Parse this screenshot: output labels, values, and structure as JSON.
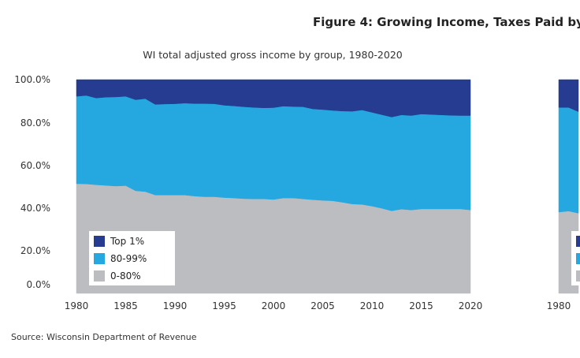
{
  "figure_title": "Figure 4: Growing Income, Taxes Paid by",
  "source": "Source: Wisconsin Department of Revenue",
  "chart_data": [
    {
      "type": "area",
      "stacked": true,
      "title": "WI total adjusted gross income by group, 1980-2020",
      "xlabel": "",
      "ylabel": "",
      "xlim": [
        1980,
        2020
      ],
      "ylim": [
        0,
        100
      ],
      "x_ticks": [
        "1980",
        "1985",
        "1990",
        "1995",
        "2000",
        "2005",
        "2010",
        "2015",
        "2020"
      ],
      "y_ticks": [
        "0.0%",
        "20.0%",
        "40.0%",
        "60.0%",
        "80.0%",
        "100.0%"
      ],
      "grid": false,
      "legend": "bottom-left",
      "x": [
        1980,
        1981,
        1982,
        1983,
        1984,
        1985,
        1986,
        1987,
        1988,
        1989,
        1990,
        1991,
        1992,
        1993,
        1994,
        1995,
        1996,
        1997,
        1998,
        1999,
        2000,
        2001,
        2002,
        2003,
        2004,
        2005,
        2006,
        2007,
        2008,
        2009,
        2010,
        2011,
        2012,
        2013,
        2014,
        2015,
        2016,
        2017,
        2018,
        2019,
        2020
      ],
      "series": [
        {
          "name": "0-80%",
          "color": "#bcbdc0",
          "values": [
            51.3,
            51.2,
            50.8,
            50.5,
            50.2,
            50.4,
            48,
            47.6,
            46,
            46,
            46,
            46,
            45.5,
            45.2,
            45.2,
            44.8,
            44.6,
            44.3,
            44.2,
            44.2,
            43.9,
            44.6,
            44.6,
            44.2,
            43.8,
            43.5,
            43.3,
            42.6,
            41.8,
            41.6,
            40.8,
            39.8,
            38.6,
            39.4,
            39,
            39.5,
            39.5,
            39.5,
            39.5,
            39.5,
            39
          ]
        },
        {
          "name": "80-99%",
          "color": "#25a8e0",
          "values": [
            40.9,
            41.4,
            40.6,
            41.3,
            41.7,
            41.8,
            42.6,
            43.5,
            42.4,
            42.6,
            42.7,
            43,
            43.3,
            43.6,
            43.5,
            43.2,
            43.1,
            43,
            42.8,
            42.6,
            43,
            43,
            42.8,
            43.1,
            42.5,
            42.5,
            42.3,
            42.7,
            43.4,
            44.2,
            43.9,
            43.8,
            43.9,
            44.1,
            44.2,
            44.4,
            44.2,
            44,
            43.8,
            43.7,
            44.2
          ]
        },
        {
          "name": "Top 1%",
          "color": "#253c90",
          "values": [
            7.8,
            7.4,
            8.6,
            8.2,
            8.1,
            7.8,
            9.4,
            8.9,
            11.6,
            11.4,
            11.3,
            11,
            11.2,
            11.2,
            11.3,
            12,
            12.3,
            12.7,
            13,
            13.2,
            13.1,
            12.4,
            12.6,
            12.7,
            13.7,
            14,
            14.4,
            14.7,
            14.8,
            14.2,
            15.3,
            16.4,
            17.5,
            16.5,
            16.8,
            16.1,
            16.3,
            16.5,
            16.7,
            16.8,
            16.8
          ]
        }
      ]
    },
    {
      "type": "area",
      "stacked": true,
      "x_ticks": [
        "1980"
      ],
      "ylim": [
        0,
        100
      ],
      "legend": "bottom-left",
      "x": [
        1980,
        1981,
        1982
      ],
      "series": [
        {
          "color": "#bcbdc0",
          "values": [
            38,
            38.5,
            37.5
          ]
        },
        {
          "color": "#25a8e0",
          "values": [
            49,
            48.5,
            47.5
          ]
        },
        {
          "color": "#253c90",
          "values": [
            13,
            13,
            15
          ]
        }
      ]
    }
  ]
}
